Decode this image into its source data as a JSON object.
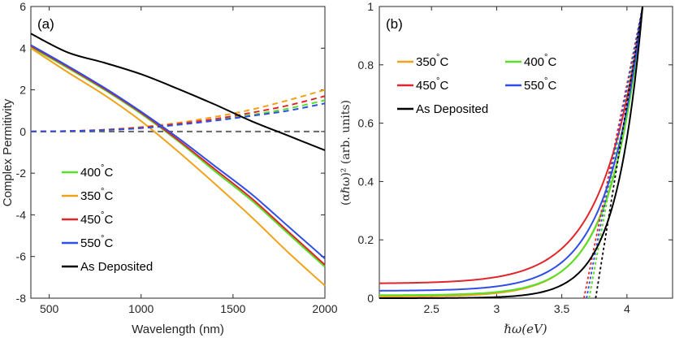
{
  "chart_data": [
    {
      "type": "line",
      "panel_label": "(a)",
      "xlabel": "Wavelength (nm)",
      "ylabel": "Complex Permitivity",
      "xlim": [
        400,
        2000
      ],
      "ylim": [
        -8,
        6
      ],
      "xticks": [
        500,
        1000,
        1500,
        2000
      ],
      "yticks": [
        -8,
        -6,
        -4,
        -2,
        0,
        2,
        4,
        6
      ],
      "x": [
        400,
        600,
        800,
        1000,
        1200,
        1400,
        1600,
        1800,
        2000
      ],
      "reference_line": {
        "y": 0,
        "style": "dashed",
        "color": "#666666"
      },
      "series": [
        {
          "name": "400°C",
          "color": "#55e02a",
          "real": [
            4.05,
            3.05,
            2.0,
            0.85,
            -0.45,
            -1.9,
            -3.3,
            -4.9,
            -6.5
          ],
          "imag": [
            0.0,
            0.02,
            0.08,
            0.18,
            0.35,
            0.55,
            0.8,
            1.1,
            1.5
          ]
        },
        {
          "name": "350°C",
          "color": "#f0a21b",
          "real": [
            4.0,
            2.85,
            1.75,
            0.5,
            -0.95,
            -2.5,
            -4.1,
            -5.8,
            -7.4
          ],
          "imag": [
            0.0,
            0.02,
            0.09,
            0.22,
            0.42,
            0.7,
            1.05,
            1.5,
            2.0
          ]
        },
        {
          "name": "450°C",
          "color": "#e0262b",
          "real": [
            4.1,
            3.1,
            2.05,
            0.9,
            -0.4,
            -1.8,
            -3.2,
            -4.8,
            -6.4
          ],
          "imag": [
            0.0,
            0.02,
            0.08,
            0.19,
            0.37,
            0.6,
            0.9,
            1.25,
            1.7
          ]
        },
        {
          "name": "550°C",
          "color": "#2e4ee6",
          "real": [
            4.15,
            3.15,
            2.1,
            0.95,
            -0.3,
            -1.65,
            -3.0,
            -4.55,
            -6.1
          ],
          "imag": [
            0.0,
            0.02,
            0.07,
            0.16,
            0.32,
            0.52,
            0.75,
            1.0,
            1.35
          ]
        },
        {
          "name": "As Deposited",
          "color": "#000000",
          "real": [
            4.7,
            3.8,
            3.3,
            2.75,
            2.05,
            1.3,
            0.5,
            -0.2,
            -0.9
          ],
          "imag": null
        }
      ],
      "legend": {
        "position": "bottom-left",
        "order": [
          "400°C",
          "350°C",
          "450°C",
          "550°C",
          "As Deposited"
        ]
      }
    },
    {
      "type": "line",
      "panel_label": "(b)",
      "xlabel": "ℏω(eV)",
      "ylabel": "(αℏω)² (arb. units)",
      "xlim": [
        2.1,
        4.35
      ],
      "ylim": [
        0,
        1
      ],
      "xticks": [
        2.5,
        3,
        3.5,
        4
      ],
      "yticks": [
        0,
        0.2,
        0.4,
        0.6,
        0.8,
        1
      ],
      "series": [
        {
          "name": "350°C",
          "color": "#f0a21b",
          "baseline": 0.005,
          "growth": 0.255,
          "intercept_eV": 3.71
        },
        {
          "name": "400°C",
          "color": "#55e02a",
          "baseline": 0.01,
          "growth": 0.25,
          "intercept_eV": 3.71
        },
        {
          "name": "450°C",
          "color": "#e0262b",
          "baseline": 0.05,
          "growth": 0.3,
          "intercept_eV": 3.67
        },
        {
          "name": "550°C",
          "color": "#2e4ee6",
          "baseline": 0.025,
          "growth": 0.27,
          "intercept_eV": 3.69
        },
        {
          "name": "As Deposited",
          "color": "#000000",
          "baseline": 0.0,
          "growth": 0.2,
          "intercept_eV": 3.76
        }
      ],
      "end_point": {
        "x": 4.12,
        "y": 1.0
      },
      "legend": {
        "position": "top-left",
        "rows": [
          [
            "350°C",
            "400°C"
          ],
          [
            "450°C",
            "550°C"
          ],
          [
            "As Deposited"
          ]
        ]
      }
    }
  ]
}
